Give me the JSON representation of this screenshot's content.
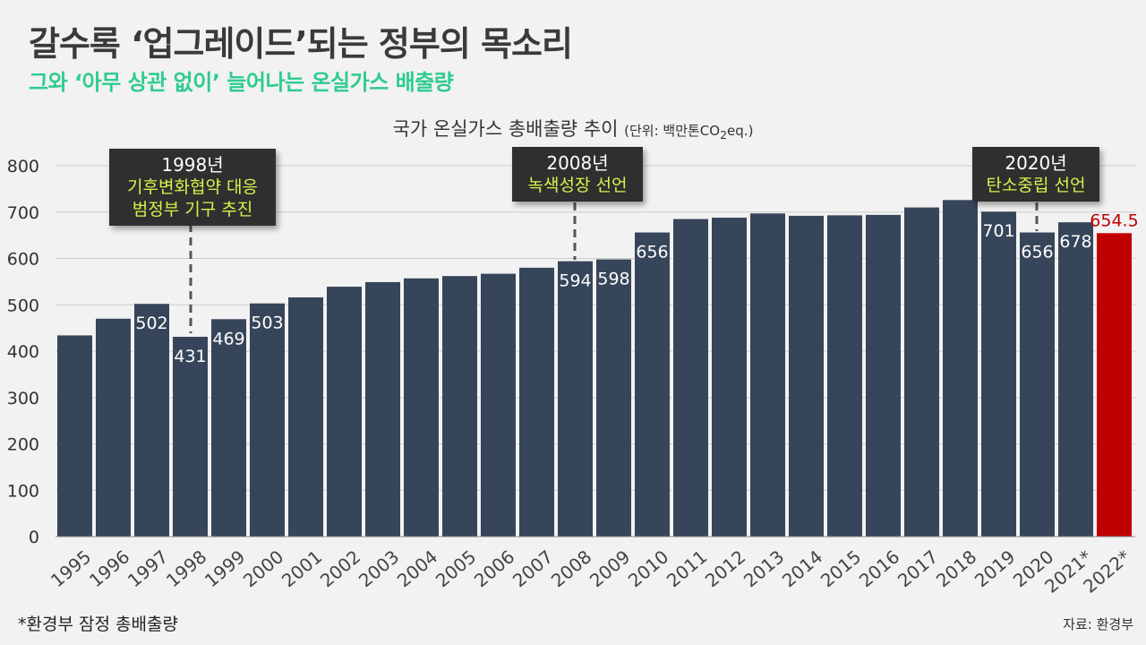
{
  "header": {
    "title": "갈수록 ‘업그레이드’되는 정부의 목소리",
    "subtitle": "그와 ‘아무 상관 없이’ 늘어나는 온실가스 배출량"
  },
  "chart_heading": {
    "main": "국가 온실가스 총배출량 추이",
    "unit_prefix": "(단위: 백만톤CO",
    "unit_sub": "2",
    "unit_suffix": "eq.)"
  },
  "callouts": [
    {
      "year": "1998년",
      "lines": [
        "기후변화협약 대응",
        "범정부 기구 추진"
      ]
    },
    {
      "year": "2008년",
      "lines": [
        "녹색성장 선언"
      ]
    },
    {
      "year": "2020년",
      "lines": [
        "탄소중립 선언"
      ]
    }
  ],
  "footnote": "*환경부 잠정 총배출량",
  "source": "자료: 환경부",
  "colors": {
    "bar": "#37455a",
    "highlight": "#c00000",
    "highlight_label": "#c00000",
    "grid": "#cccccc",
    "callout_bg": "#2f2f2f",
    "callout_text": "#d8f24a",
    "subtitle": "#2ecc8f"
  },
  "chart_data": {
    "type": "bar",
    "categories": [
      "1995",
      "1996",
      "1997",
      "1998",
      "1999",
      "2000",
      "2001",
      "2002",
      "2003",
      "2004",
      "2005",
      "2006",
      "2007",
      "2008",
      "2009",
      "2010",
      "2011",
      "2012",
      "2013",
      "2014",
      "2015",
      "2016",
      "2017",
      "2018",
      "2019",
      "2020",
      "2021*",
      "2022*"
    ],
    "values": [
      434,
      470,
      502,
      431,
      469,
      503,
      516,
      539,
      549,
      557,
      562,
      567,
      580,
      594,
      598,
      656,
      685,
      688,
      697,
      692,
      693,
      694,
      710,
      726,
      701,
      656,
      678,
      654.5
    ],
    "labels": [
      "",
      "",
      "502",
      "431",
      "469",
      "503",
      "",
      "",
      "",
      "",
      "",
      "",
      "",
      "594",
      "598",
      "656",
      "",
      "",
      "",
      "",
      "",
      "",
      "",
      "",
      "701",
      "656",
      "678",
      "654.5"
    ],
    "highlight_index": 27,
    "ylim": [
      0,
      800
    ],
    "yticks": [
      0,
      100,
      200,
      300,
      400,
      500,
      600,
      700,
      800
    ],
    "grid": true
  }
}
